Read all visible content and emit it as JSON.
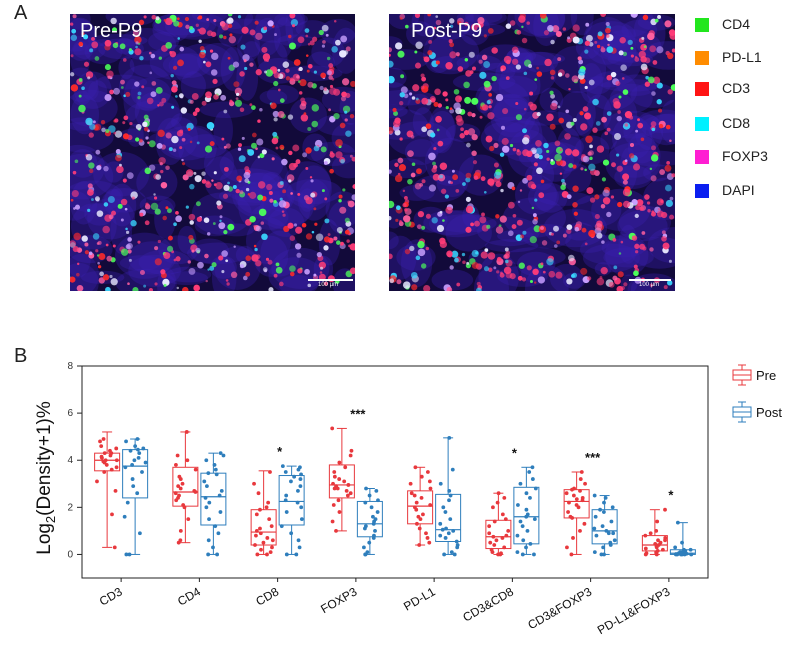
{
  "panel_a": {
    "label": "A",
    "images": [
      {
        "title": "Pre-P9",
        "scale_label": "100 µm"
      },
      {
        "title": "Post-P9",
        "scale_label": "100 µm"
      }
    ],
    "legend": [
      {
        "label": "CD4",
        "color": "#22e61e"
      },
      {
        "label": "PD-L1",
        "color": "#ff8c00"
      },
      {
        "label": "CD3",
        "color": "#ff1414"
      },
      {
        "label": "CD8",
        "color": "#00f0ff"
      },
      {
        "label": "FOXP3",
        "color": "#ff1ed2"
      },
      {
        "label": "DAPI",
        "color": "#0a1ef0"
      }
    ]
  },
  "panel_b": {
    "label": "B"
  },
  "chart_data": {
    "type": "box",
    "ylabel": "Log2(Density+1)%",
    "ylabel_main": "Log",
    "ylabel_sub": "2",
    "ylabel_rest": "(Density+1)%",
    "ylim": [
      -1,
      8
    ],
    "yticks": [
      0,
      2,
      4,
      6,
      8
    ],
    "grid": false,
    "legend_position": "right",
    "categories": [
      "CD3",
      "CD4",
      "CD8",
      "FOXP3",
      "PD-L1",
      "CD3&CD8",
      "CD3&FOXP3",
      "PD-L1&FOXP3"
    ],
    "significance": [
      "",
      "",
      "*",
      "***",
      "",
      "*",
      "***",
      "*"
    ],
    "series": [
      {
        "name": "Pre",
        "color": "#e8383d",
        "boxes": [
          {
            "min": 0.3,
            "q1": 3.55,
            "median": 4.0,
            "q3": 4.3,
            "max": 5.2
          },
          {
            "min": 0.5,
            "q1": 2.05,
            "median": 2.65,
            "q3": 3.7,
            "max": 5.2
          },
          {
            "min": 0.0,
            "q1": 0.4,
            "median": 0.95,
            "q3": 1.9,
            "max": 3.55
          },
          {
            "min": 1.0,
            "q1": 2.4,
            "median": 2.95,
            "q3": 3.8,
            "max": 5.35
          },
          {
            "min": 0.4,
            "q1": 1.3,
            "median": 2.05,
            "q3": 2.7,
            "max": 3.7
          },
          {
            "min": 0.0,
            "q1": 0.25,
            "median": 0.75,
            "q3": 1.45,
            "max": 2.6
          },
          {
            "min": 0.0,
            "q1": 1.55,
            "median": 2.25,
            "q3": 2.75,
            "max": 3.5
          },
          {
            "min": 0.0,
            "q1": 0.15,
            "median": 0.4,
            "q3": 0.8,
            "max": 1.9
          }
        ],
        "points": [
          [
            4.9,
            4.6,
            4.5,
            4.3,
            4.2,
            4.1,
            4.0,
            4.0,
            3.9,
            3.8,
            3.7,
            3.6,
            3.5,
            4.4,
            4.3,
            3.1,
            2.7,
            1.7,
            0.3,
            4.8,
            4.15,
            3.95
          ],
          [
            5.2,
            4.2,
            4.0,
            3.8,
            3.6,
            3.3,
            3.0,
            2.9,
            2.8,
            2.7,
            2.6,
            2.5,
            2.4,
            2.3,
            2.1,
            2.0,
            1.5,
            1.0,
            0.6,
            0.5,
            3.2,
            2.65
          ],
          [
            3.5,
            3.0,
            2.6,
            2.2,
            1.9,
            1.7,
            1.5,
            1.2,
            1.0,
            0.9,
            0.8,
            0.7,
            0.6,
            0.5,
            0.4,
            0.3,
            0.2,
            0.1,
            0.0,
            0.0,
            1.1,
            2.0
          ],
          [
            5.35,
            4.4,
            4.2,
            3.9,
            3.7,
            3.5,
            3.3,
            3.1,
            3.0,
            2.95,
            2.9,
            2.8,
            2.7,
            2.6,
            2.5,
            2.3,
            2.1,
            1.8,
            1.4,
            1.0,
            3.2,
            2.8
          ],
          [
            3.7,
            3.5,
            3.3,
            3.0,
            2.8,
            2.6,
            2.4,
            2.2,
            2.1,
            2.0,
            1.9,
            1.7,
            1.5,
            1.3,
            1.1,
            0.9,
            0.7,
            0.5,
            0.4,
            2.5,
            1.6,
            3.1
          ],
          [
            2.6,
            2.4,
            2.0,
            1.7,
            1.4,
            1.2,
            1.0,
            0.9,
            0.8,
            0.7,
            0.6,
            0.5,
            0.4,
            0.3,
            0.2,
            0.1,
            0.0,
            0.0,
            1.5,
            0.75,
            2.2,
            0.05
          ],
          [
            3.5,
            3.2,
            3.0,
            2.8,
            2.7,
            2.6,
            2.5,
            2.4,
            2.3,
            2.2,
            2.1,
            2.0,
            1.8,
            1.6,
            1.3,
            1.0,
            0.7,
            0.3,
            0.0,
            2.75,
            2.35,
            1.55
          ],
          [
            1.9,
            1.4,
            1.0,
            0.8,
            0.7,
            0.6,
            0.5,
            0.45,
            0.4,
            0.35,
            0.3,
            0.25,
            0.2,
            0.15,
            0.1,
            0.05,
            0.0,
            0.0,
            0.6,
            0.9
          ]
        ]
      },
      {
        "name": "Post",
        "color": "#2e7ebc",
        "boxes": [
          {
            "min": 0.0,
            "q1": 2.4,
            "median": 3.75,
            "q3": 4.45,
            "max": 4.9
          },
          {
            "min": 0.0,
            "q1": 1.25,
            "median": 2.45,
            "q3": 3.45,
            "max": 4.3
          },
          {
            "min": 0.0,
            "q1": 1.25,
            "median": 2.25,
            "q3": 3.35,
            "max": 3.75
          },
          {
            "min": 0.0,
            "q1": 0.75,
            "median": 1.3,
            "q3": 2.25,
            "max": 2.8
          },
          {
            "min": 0.0,
            "q1": 0.55,
            "median": 1.05,
            "q3": 2.55,
            "max": 4.95
          },
          {
            "min": 0.0,
            "q1": 0.45,
            "median": 1.6,
            "q3": 2.85,
            "max": 3.7
          },
          {
            "min": 0.0,
            "q1": 0.45,
            "median": 1.0,
            "q3": 1.9,
            "max": 2.5
          },
          {
            "min": 0.0,
            "q1": 0.0,
            "median": 0.05,
            "q3": 0.2,
            "max": 1.35
          }
        ]
      }
    ],
    "post_points": [
      [
        4.9,
        4.8,
        4.6,
        4.5,
        4.4,
        4.3,
        4.1,
        4.0,
        3.9,
        3.8,
        3.7,
        3.5,
        3.2,
        2.9,
        2.6,
        2.2,
        1.6,
        0.9,
        0.0,
        0.0,
        4.45
      ],
      [
        4.3,
        4.2,
        4.0,
        3.8,
        3.6,
        3.4,
        3.1,
        2.9,
        2.7,
        2.5,
        2.4,
        2.2,
        2.0,
        1.8,
        1.5,
        1.2,
        0.9,
        0.6,
        0.3,
        0.0,
        0.0,
        3.45
      ],
      [
        3.75,
        3.7,
        3.6,
        3.5,
        3.4,
        3.3,
        3.1,
        2.9,
        2.7,
        2.5,
        2.3,
        2.2,
        2.0,
        1.8,
        1.5,
        1.2,
        0.9,
        0.6,
        0.3,
        0.0,
        0.0,
        3.2
      ],
      [
        2.8,
        2.7,
        2.5,
        2.3,
        2.2,
        2.0,
        1.8,
        1.6,
        1.4,
        1.3,
        1.2,
        1.1,
        1.0,
        0.8,
        0.7,
        0.5,
        0.3,
        0.1,
        0.0,
        0.0,
        1.5
      ],
      [
        4.95,
        3.6,
        3.0,
        2.7,
        2.5,
        2.3,
        2.0,
        1.8,
        1.5,
        1.3,
        1.1,
        1.0,
        0.9,
        0.8,
        0.7,
        0.55,
        0.4,
        0.3,
        0.1,
        0.0,
        0.0,
        1.05
      ],
      [
        3.7,
        3.5,
        3.2,
        3.0,
        2.8,
        2.6,
        2.4,
        2.1,
        1.9,
        1.7,
        1.6,
        1.4,
        1.2,
        1.0,
        0.8,
        0.6,
        0.45,
        0.3,
        0.1,
        0.0,
        0.0,
        1.5
      ],
      [
        2.5,
        2.4,
        2.2,
        2.0,
        1.9,
        1.8,
        1.6,
        1.4,
        1.2,
        1.1,
        1.0,
        0.9,
        0.8,
        0.6,
        0.5,
        0.4,
        0.3,
        0.1,
        0.0,
        0.0,
        0.9
      ],
      [
        1.35,
        0.5,
        0.3,
        0.2,
        0.15,
        0.1,
        0.08,
        0.06,
        0.05,
        0.04,
        0.03,
        0.02,
        0.0,
        0.0,
        0.0,
        0.0,
        0.0,
        0.0,
        0.2,
        0.1
      ]
    ]
  }
}
